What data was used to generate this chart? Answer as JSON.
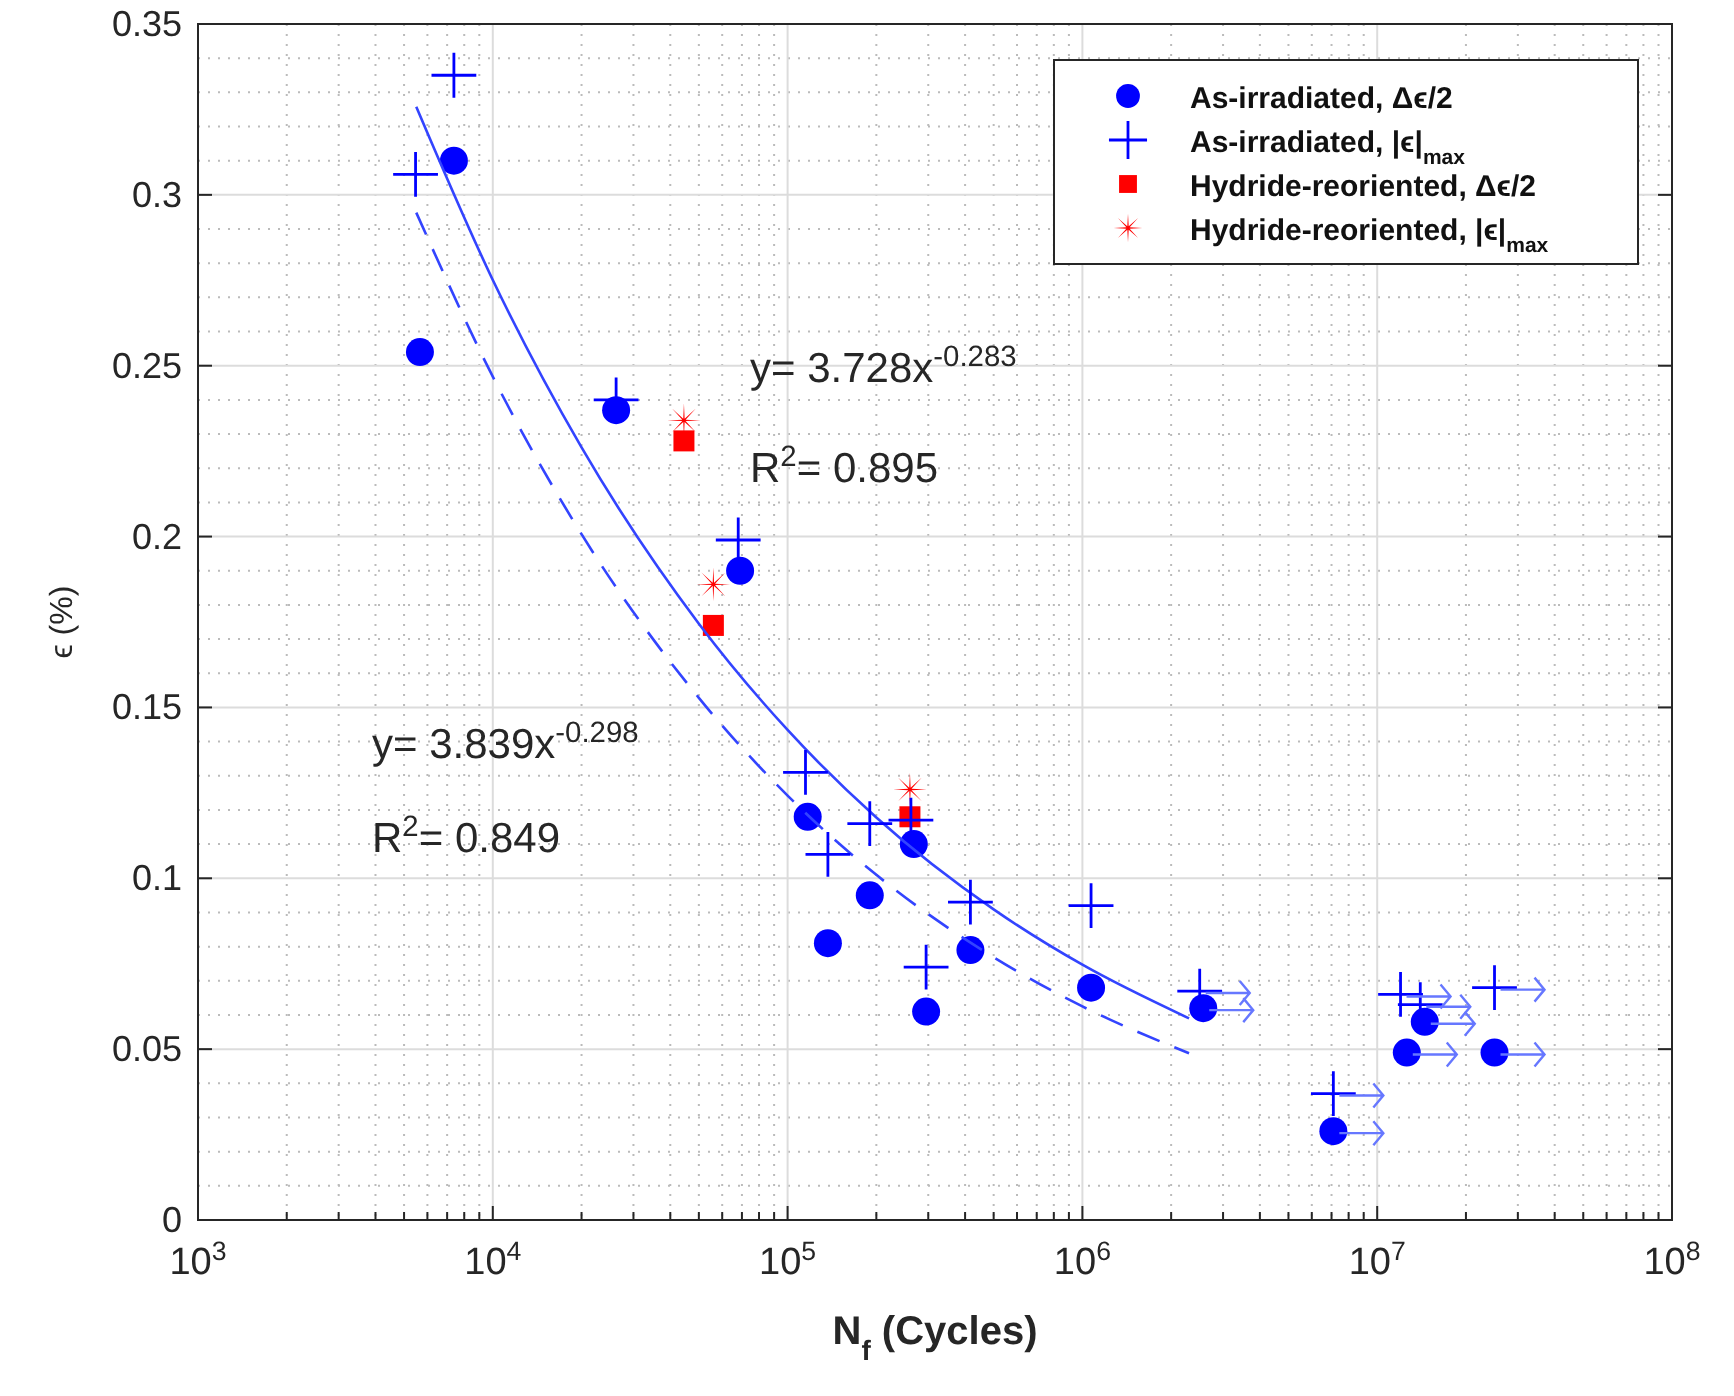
{
  "chart_data": {
    "type": "scatter",
    "xlabel": "N$_{f}$ (Cycles)",
    "ylabel": "ϵ (%)",
    "log": "x",
    "grid": true,
    "legend": "top right",
    "xlim": [
      1000,
      100000000
    ],
    "xticks": [
      {
        "value": 1000,
        "label": "10$^{3}$"
      },
      {
        "value": 10000,
        "label": "10$^{4}$"
      },
      {
        "value": 100000,
        "label": "10$^{5}$"
      },
      {
        "value": 1000000,
        "label": "10$^{6}$"
      },
      {
        "value": 10000000,
        "label": "10$^{7}$"
      },
      {
        "value": 100000000,
        "label": "10$^{8}$"
      }
    ],
    "ylim": [
      0,
      0.35
    ],
    "yticks": [
      0,
      0.05,
      0.1,
      0.15,
      0.2,
      0.25,
      0.3,
      0.35
    ],
    "series": [
      {
        "name": "As-irradiated, Δϵ/2",
        "color": "#0000ff",
        "marker": "circle",
        "x": [
          5660,
          7380,
          26200,
          69000,
          117000,
          137000,
          190000,
          268000,
          295000,
          417000,
          1070000,
          2570000,
          7100000,
          12600000,
          14500000,
          25000000
        ],
        "values": [
          0.254,
          0.31,
          0.237,
          0.19,
          0.118,
          0.081,
          0.095,
          0.11,
          0.061,
          0.079,
          0.068,
          0.062,
          0.026,
          0.049,
          0.058,
          0.049
        ]
      },
      {
        "name": "As-irradiated, |ϵ|$_{max}$",
        "color": "#0000ff",
        "marker": "cross",
        "x": [
          5470,
          7380,
          26200,
          68000,
          115000,
          137000,
          190000,
          262000,
          295000,
          417000,
          1070000,
          2500000,
          7100000,
          12000000,
          14000000,
          25000000
        ],
        "values": [
          0.306,
          0.335,
          0.24,
          0.199,
          0.131,
          0.107,
          0.116,
          0.117,
          0.074,
          0.093,
          0.092,
          0.067,
          0.037,
          0.066,
          0.063,
          0.068
        ]
      },
      {
        "name": "Hydride-reoriented, Δϵ/2",
        "color": "#ff0000",
        "marker": "square",
        "x": [
          44500,
          56000,
          260000
        ],
        "values": [
          0.228,
          0.174,
          0.118
        ]
      },
      {
        "name": "Hydride-reoriented, |ϵ|$_{max}$",
        "color": "#ff0000",
        "marker": "star",
        "x": [
          44500,
          56000,
          260000
        ],
        "values": [
          0.234,
          0.186,
          0.126
        ]
      },
      {
        "type": "line",
        "color": "#3344ff",
        "line_style": "solid",
        "x": [
          5500,
          10000,
          20000,
          50000,
          100000,
          200000,
          500000,
          1000000,
          2300000
        ],
        "values": [
          0.3258,
          0.2751,
          0.2261,
          0.1745,
          0.1434,
          0.1178,
          0.0909,
          0.0747,
          0.059
        ]
      },
      {
        "type": "line",
        "color": "#3344ff",
        "line_style": "dashed",
        "x": [
          5500,
          10000,
          20000,
          50000,
          100000,
          200000,
          500000,
          1000000,
          2300000
        ],
        "values": [
          0.2948,
          0.2468,
          0.2007,
          0.1528,
          0.1242,
          0.101,
          0.0769,
          0.0625,
          0.0488
        ]
      }
    ],
    "annotations": [
      "y= 3.728x$^{-0.283}$",
      "R$^{2}$= 0.895",
      "y= 3.839x$^{-0.298}$",
      "R$^{2}$= 0.849"
    ]
  }
}
